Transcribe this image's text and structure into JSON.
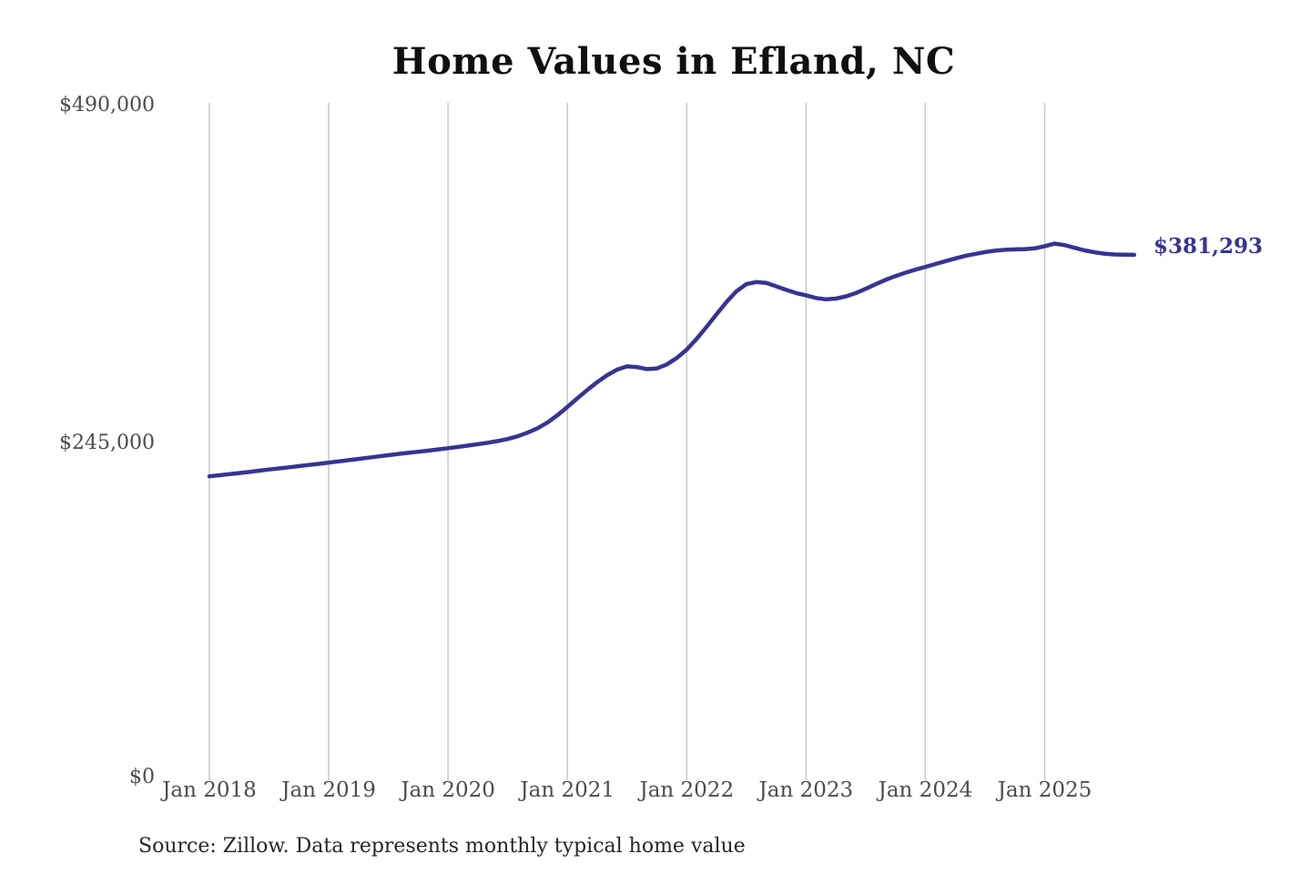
{
  "chart": {
    "title": "Home Values in Efland, NC",
    "end_label": "$381,293",
    "source_note": "Source: Zillow. Data represents monthly typical home value"
  },
  "colors": {
    "line": "#383394",
    "end_label": "#383394",
    "grid": "#c9c9c9",
    "axis_text": "#4c4c4c",
    "title_text": "#101010",
    "source_text": "#262626",
    "background": "#ffffff"
  },
  "chart_data": {
    "type": "line",
    "title": "Home Values in Efland, NC",
    "xlabel": "",
    "ylabel": "",
    "ylim": [
      0,
      490000
    ],
    "y_tick_values": [
      0,
      245000,
      490000
    ],
    "y_tick_labels": [
      "$0",
      "$245,000",
      "$490,000"
    ],
    "x_tick_labels": [
      "Jan 2018",
      "Jan 2019",
      "Jan 2020",
      "Jan 2021",
      "Jan 2022",
      "Jan 2023",
      "Jan 2024",
      "Jan 2025"
    ],
    "x_start_month": "Jan 2018",
    "x_end_month": "Oct 2025",
    "frequency": "monthly",
    "grid": "vertical-only",
    "legend": "none",
    "end_value": 381293,
    "series": [
      {
        "name": "Typical home value",
        "values": [
          220000,
          220800,
          221600,
          222400,
          223200,
          224100,
          225000,
          225800,
          226600,
          227400,
          228300,
          229100,
          230000,
          230900,
          231800,
          232700,
          233600,
          234500,
          235400,
          236300,
          237100,
          237900,
          238700,
          239600,
          240500,
          241400,
          242400,
          243400,
          244500,
          245700,
          247200,
          249200,
          251800,
          255000,
          259200,
          264500,
          270500,
          276800,
          282900,
          288600,
          293700,
          297700,
          300100,
          299600,
          298100,
          298600,
          301500,
          306200,
          312300,
          320100,
          328900,
          338100,
          347000,
          354800,
          360000,
          361500,
          360900,
          358400,
          355800,
          353500,
          351800,
          349900,
          348900,
          349400,
          351000,
          353500,
          356600,
          359900,
          363100,
          365900,
          368300,
          370500,
          372500,
          374600,
          376700,
          378700,
          380500,
          382000,
          383300,
          384300,
          385000,
          385300,
          385500,
          386000,
          387600,
          389500,
          388400,
          386400,
          384600,
          383200,
          382200,
          381600,
          381400,
          381293
        ]
      }
    ]
  }
}
